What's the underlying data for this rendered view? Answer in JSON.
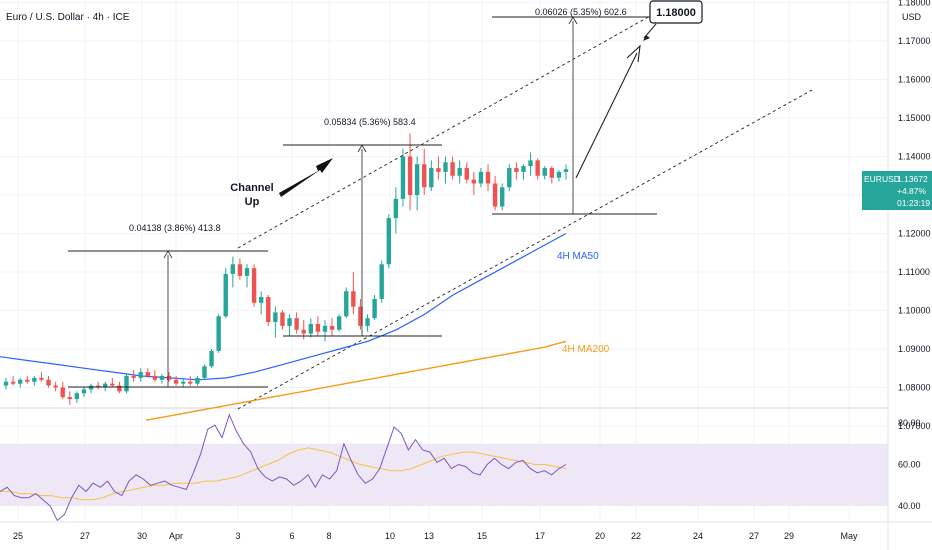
{
  "header": {
    "symbol_title": "Euro / U.S. Dollar · 4h · ICE"
  },
  "price_axis": {
    "currency": "USD",
    "labels": [
      "1.18000",
      "1.17000",
      "1.16000",
      "1.15000",
      "1.14000",
      "1.12000",
      "1.11000",
      "1.10000",
      "1.09000",
      "1.08000",
      "1.07000"
    ]
  },
  "rsi_axis": {
    "labels": [
      "80.00",
      "60.00",
      "40.00"
    ]
  },
  "time_axis": {
    "labels": [
      "25",
      "27",
      "30",
      "Apr",
      "3",
      "6",
      "8",
      "10",
      "13",
      "15",
      "17",
      "20",
      "22",
      "24",
      "27",
      "29",
      "May"
    ]
  },
  "ticker": {
    "name": "EURUSD",
    "price": "1.13672",
    "change": "+4.87%",
    "countdown": "01:23:19"
  },
  "annotations": {
    "measure1": "0.04138 (3.86%) 413.8",
    "measure2": "0.05834 (5.36%) 583.4",
    "measure3": "0.06026 (5.35%) 602.6",
    "target": "1.18000",
    "channel_line1": "Channel",
    "channel_line2": "Up",
    "ma50_label": "4H MA50",
    "ma200_label": "4H MA200"
  },
  "colors": {
    "bull": "#26a69a",
    "bear": "#ef5350",
    "ma50": "#2962ff",
    "ma200": "#f59c1a",
    "rsi": "#7e57c2",
    "rsi_ma": "#f5c242",
    "rsi_band": "#ede7f6",
    "badge": "#26a69a"
  },
  "chart_data": {
    "type": "candlestick",
    "title": "Euro / U.S. Dollar · 4h · ICE",
    "ylim": [
      1.065,
      1.187
    ],
    "y_ticks": [
      1.07,
      1.08,
      1.09,
      1.1,
      1.11,
      1.12,
      1.13,
      1.14,
      1.15,
      1.16,
      1.17,
      1.18
    ],
    "last_price": 1.13672,
    "candles_ohlc": [
      [
        1.0805,
        1.0825,
        1.0795,
        1.0815
      ],
      [
        1.0815,
        1.083,
        1.0805,
        1.081
      ],
      [
        1.081,
        1.0825,
        1.08,
        1.082
      ],
      [
        1.082,
        1.083,
        1.081,
        1.0815
      ],
      [
        1.0815,
        1.083,
        1.0805,
        1.0825
      ],
      [
        1.0825,
        1.084,
        1.0815,
        1.082
      ],
      [
        1.082,
        1.083,
        1.08,
        1.0805
      ],
      [
        1.0805,
        1.0815,
        1.079,
        1.08
      ],
      [
        1.08,
        1.0815,
        1.077,
        1.0775
      ],
      [
        1.0775,
        1.079,
        1.0755,
        1.077
      ],
      [
        1.077,
        1.079,
        1.076,
        1.0785
      ],
      [
        1.0785,
        1.08,
        1.0775,
        1.0795
      ],
      [
        1.0795,
        1.081,
        1.0785,
        1.0805
      ],
      [
        1.0805,
        1.0815,
        1.0795,
        1.08
      ],
      [
        1.08,
        1.0815,
        1.079,
        1.081
      ],
      [
        1.081,
        1.0825,
        1.08,
        1.0805
      ],
      [
        1.0805,
        1.0815,
        1.0785,
        1.079
      ],
      [
        1.079,
        1.0835,
        1.0785,
        1.083
      ],
      [
        1.083,
        1.0845,
        1.0815,
        1.0825
      ],
      [
        1.0825,
        1.085,
        1.0815,
        1.084
      ],
      [
        1.084,
        1.085,
        1.0825,
        1.083
      ],
      [
        1.083,
        1.0845,
        1.0815,
        1.082
      ],
      [
        1.082,
        1.0835,
        1.081,
        1.083
      ],
      [
        1.083,
        1.084,
        1.0815,
        1.082
      ],
      [
        1.082,
        1.083,
        1.0805,
        1.081
      ],
      [
        1.081,
        1.0825,
        1.08,
        1.0815
      ],
      [
        1.0815,
        1.083,
        1.0805,
        1.081
      ],
      [
        1.081,
        1.083,
        1.0805,
        1.0825
      ],
      [
        1.0825,
        1.086,
        1.082,
        1.0855
      ],
      [
        1.0855,
        1.09,
        1.085,
        1.0895
      ],
      [
        1.0895,
        1.099,
        1.089,
        1.0985
      ],
      [
        1.0985,
        1.111,
        1.098,
        1.1095
      ],
      [
        1.1095,
        1.114,
        1.106,
        1.112
      ],
      [
        1.112,
        1.1135,
        1.108,
        1.109
      ],
      [
        1.109,
        1.112,
        1.106,
        1.111
      ],
      [
        1.111,
        1.112,
        1.101,
        1.102
      ],
      [
        1.102,
        1.105,
        1.099,
        1.1035
      ],
      [
        1.1035,
        1.104,
        1.096,
        1.097
      ],
      [
        1.097,
        1.101,
        1.093,
        1.0995
      ],
      [
        1.0995,
        1.1,
        1.095,
        1.096
      ],
      [
        1.096,
        1.099,
        1.0935,
        1.098
      ],
      [
        1.098,
        1.0995,
        1.094,
        1.095
      ],
      [
        1.095,
        1.0975,
        1.0925,
        1.094
      ],
      [
        1.094,
        1.098,
        1.093,
        1.0965
      ],
      [
        1.0965,
        1.0985,
        1.0935,
        1.0945
      ],
      [
        1.0945,
        1.0975,
        1.092,
        1.096
      ],
      [
        1.096,
        1.098,
        1.0935,
        1.095
      ],
      [
        1.095,
        1.099,
        1.0945,
        1.0985
      ],
      [
        1.0985,
        1.106,
        1.098,
        1.105
      ],
      [
        1.105,
        1.11,
        1.099,
        1.101
      ],
      [
        1.101,
        1.103,
        1.095,
        1.096
      ],
      [
        1.096,
        1.099,
        1.0945,
        1.098
      ],
      [
        1.098,
        1.104,
        1.0975,
        1.103
      ],
      [
        1.103,
        1.113,
        1.102,
        1.112
      ],
      [
        1.112,
        1.125,
        1.111,
        1.124
      ],
      [
        1.124,
        1.132,
        1.12,
        1.129
      ],
      [
        1.129,
        1.142,
        1.127,
        1.14
      ],
      [
        1.14,
        1.146,
        1.126,
        1.13
      ],
      [
        1.13,
        1.14,
        1.126,
        1.138
      ],
      [
        1.138,
        1.142,
        1.13,
        1.132
      ],
      [
        1.132,
        1.139,
        1.131,
        1.137
      ],
      [
        1.137,
        1.14,
        1.134,
        1.136
      ],
      [
        1.136,
        1.14,
        1.133,
        1.1385
      ],
      [
        1.1385,
        1.14,
        1.134,
        1.135
      ],
      [
        1.135,
        1.139,
        1.133,
        1.137
      ],
      [
        1.137,
        1.1385,
        1.133,
        1.134
      ],
      [
        1.134,
        1.136,
        1.13,
        1.133
      ],
      [
        1.133,
        1.137,
        1.132,
        1.136
      ],
      [
        1.136,
        1.138,
        1.131,
        1.133
      ],
      [
        1.133,
        1.135,
        1.126,
        1.127
      ],
      [
        1.127,
        1.133,
        1.126,
        1.132
      ],
      [
        1.132,
        1.138,
        1.131,
        1.137
      ],
      [
        1.137,
        1.1385,
        1.134,
        1.136
      ],
      [
        1.136,
        1.138,
        1.134,
        1.1375
      ],
      [
        1.1375,
        1.141,
        1.135,
        1.139
      ],
      [
        1.139,
        1.1395,
        1.134,
        1.135
      ],
      [
        1.135,
        1.1375,
        1.134,
        1.137
      ],
      [
        1.137,
        1.1375,
        1.133,
        1.1345
      ],
      [
        1.1345,
        1.1365,
        1.1335,
        1.136
      ],
      [
        1.136,
        1.138,
        1.134,
        1.1367
      ]
    ],
    "ma50": [
      1.088,
      1.087,
      1.086,
      1.085,
      1.084,
      1.083,
      1.0825,
      1.082,
      1.0825,
      1.084,
      1.086,
      1.088,
      1.09,
      1.092,
      1.095,
      1.099,
      1.104,
      1.108,
      1.112,
      1.116,
      1.12
    ],
    "ma200": [
      1.0715,
      1.0725,
      1.0735,
      1.0745,
      1.0755,
      1.0765,
      1.0775,
      1.0785,
      1.0795,
      1.0805,
      1.0815,
      1.0825,
      1.0835,
      1.0845,
      1.0855,
      1.0865,
      1.0875,
      1.0885,
      1.0895,
      1.0905,
      1.092
    ],
    "rsi": [
      47,
      49,
      45,
      44,
      44,
      46,
      43,
      40,
      33,
      36,
      44,
      50,
      47,
      51,
      49,
      52,
      47,
      45,
      52,
      55,
      53,
      50,
      51,
      52,
      50,
      49,
      48,
      56,
      65,
      77,
      79,
      73,
      84,
      76,
      70,
      66,
      58,
      54,
      52,
      54,
      53,
      50,
      52,
      55,
      49,
      55,
      53,
      57,
      70,
      62,
      55,
      51,
      53,
      58,
      68,
      78,
      75,
      67,
      72,
      67,
      66,
      61,
      63,
      58,
      60,
      59,
      56,
      55,
      60,
      63,
      60,
      58,
      61,
      62,
      58,
      56,
      57,
      55,
      58,
      60
    ],
    "rsi_ma": [
      47,
      47,
      46,
      46,
      45,
      45,
      44,
      44,
      43,
      43,
      44,
      46,
      47,
      48,
      49,
      50,
      50,
      51,
      51,
      51,
      52,
      52,
      53,
      54,
      56,
      58,
      60,
      62,
      65,
      67,
      68,
      67,
      66,
      64,
      62,
      60,
      59,
      58,
      57,
      57,
      58,
      60,
      62,
      64,
      65,
      66,
      66,
      65,
      64,
      63,
      62,
      61,
      60,
      60,
      59,
      58
    ],
    "rsi_ylim": [
      30,
      90
    ],
    "rsi_bands": [
      40,
      70
    ]
  }
}
